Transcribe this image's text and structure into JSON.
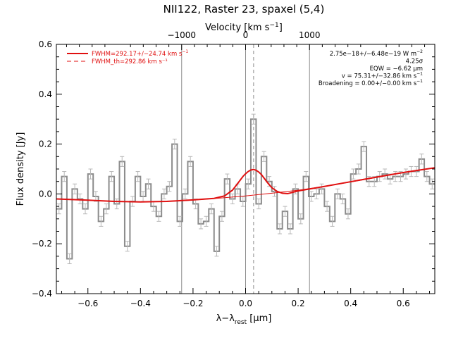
{
  "chart_data": {
    "type": "line",
    "title": "NII122, Raster 23, spaxel (5,4)",
    "xlabel": "λ−λ_rest [μm]",
    "xlabel_parts": {
      "main": "λ−λ",
      "sub": "rest",
      "unit": " [μm]"
    },
    "ylabel": "Flux density [Jy]",
    "top_axis_label": "Velocity [km s⁻¹]",
    "top_axis_label_parts": {
      "main": "Velocity [km s",
      "sup": "−1",
      "end": "]"
    },
    "xlim": [
      -0.72,
      0.72
    ],
    "ylim": [
      -0.4,
      0.6
    ],
    "xticks": [
      -0.6,
      -0.4,
      -0.2,
      0.0,
      0.2,
      0.4,
      0.6
    ],
    "xtick_labels": [
      "−0.6",
      "−0.4",
      "−0.2",
      "0.0",
      "0.2",
      "0.4",
      "0.6"
    ],
    "yticks": [
      -0.4,
      -0.2,
      0.0,
      0.2,
      0.4,
      0.6
    ],
    "ytick_labels": [
      "−0.4",
      "−0.2",
      "0.0",
      "0.2",
      "0.4",
      "0.6"
    ],
    "velocity_ticks": [
      {
        "x": -0.2433,
        "label": "−1000"
      },
      {
        "x": 0.0,
        "label": "0"
      },
      {
        "x": 0.2433,
        "label": "1000"
      }
    ],
    "vertical_lines": [
      {
        "x": -0.2433,
        "style": "solid"
      },
      {
        "x": 0.0,
        "style": "solid"
      },
      {
        "x": 0.2433,
        "style": "solid"
      },
      {
        "x": 0.0305,
        "style": "dashed"
      }
    ],
    "spectrum": {
      "x": [
        -0.71,
        -0.69,
        -0.67,
        -0.65,
        -0.63,
        -0.61,
        -0.59,
        -0.57,
        -0.55,
        -0.53,
        -0.51,
        -0.49,
        -0.47,
        -0.45,
        -0.43,
        -0.41,
        -0.39,
        -0.37,
        -0.35,
        -0.33,
        -0.31,
        -0.29,
        -0.27,
        -0.25,
        -0.23,
        -0.21,
        -0.19,
        -0.17,
        -0.15,
        -0.13,
        -0.11,
        -0.09,
        -0.07,
        -0.05,
        -0.03,
        -0.01,
        0.01,
        0.03,
        0.05,
        0.07,
        0.09,
        0.11,
        0.13,
        0.15,
        0.17,
        0.19,
        0.21,
        0.23,
        0.25,
        0.27,
        0.29,
        0.31,
        0.33,
        0.35,
        0.37,
        0.39,
        0.41,
        0.43,
        0.45,
        0.47,
        0.49,
        0.51,
        0.53,
        0.55,
        0.57,
        0.59,
        0.61,
        0.63,
        0.65,
        0.67,
        0.69,
        0.71
      ],
      "y": [
        -0.06,
        0.07,
        -0.26,
        0.02,
        -0.02,
        -0.06,
        0.08,
        -0.01,
        -0.11,
        -0.06,
        0.07,
        -0.04,
        0.13,
        -0.21,
        -0.03,
        0.07,
        -0.01,
        0.04,
        -0.05,
        -0.09,
        0.0,
        0.03,
        0.2,
        -0.11,
        0.0,
        0.13,
        -0.04,
        -0.12,
        -0.11,
        -0.06,
        -0.23,
        -0.09,
        0.06,
        -0.02,
        0.02,
        -0.03,
        0.04,
        0.3,
        -0.04,
        0.15,
        0.05,
        0.01,
        -0.14,
        -0.07,
        -0.14,
        0.02,
        -0.1,
        0.07,
        -0.01,
        0.0,
        0.02,
        -0.05,
        -0.11,
        0.0,
        -0.02,
        -0.08,
        0.08,
        0.1,
        0.19,
        0.05,
        0.05,
        0.07,
        0.08,
        0.06,
        0.07,
        0.07,
        0.08,
        0.09,
        0.09,
        0.14,
        0.07,
        0.04
      ],
      "errors": 0.02,
      "color": "#8c8c8c"
    },
    "fit": {
      "name": "FWHM=292.17+/−24.74 km s⁻¹",
      "legend_parts": {
        "main": "FWHM=292.17+/−24.74 km s",
        "sup": "−1"
      },
      "color": "#e01010",
      "x": [
        -0.72,
        -0.6,
        -0.5,
        -0.4,
        -0.3,
        -0.2,
        -0.12,
        -0.08,
        -0.05,
        -0.03,
        -0.01,
        0.0,
        0.01,
        0.02,
        0.03,
        0.04,
        0.05,
        0.06,
        0.07,
        0.08,
        0.09,
        0.1,
        0.12,
        0.14,
        0.16,
        0.2,
        0.3,
        0.4,
        0.5,
        0.6,
        0.72
      ],
      "y": [
        -0.02,
        -0.025,
        -0.03,
        -0.032,
        -0.03,
        -0.024,
        -0.018,
        -0.008,
        0.015,
        0.042,
        0.07,
        0.081,
        0.09,
        0.096,
        0.098,
        0.095,
        0.088,
        0.078,
        0.064,
        0.05,
        0.037,
        0.025,
        0.01,
        0.003,
        0.001,
        0.012,
        0.03,
        0.049,
        0.068,
        0.086,
        0.105
      ]
    },
    "baseline": {
      "color": "#e01010",
      "x": [
        -0.72,
        -0.6,
        -0.5,
        -0.4,
        -0.3,
        -0.2,
        -0.1,
        0.0,
        0.1,
        0.2,
        0.3,
        0.4,
        0.5,
        0.6,
        0.72
      ],
      "y": [
        -0.02,
        -0.025,
        -0.03,
        -0.032,
        -0.03,
        -0.025,
        -0.017,
        -0.008,
        0.003,
        0.015,
        0.03,
        0.048,
        0.066,
        0.085,
        0.105
      ]
    },
    "legend": [
      {
        "label": "FWHM=292.17+/−24.74 km s⁻¹",
        "style": "solid",
        "color": "#e01010"
      },
      {
        "label": "FWHM_th=292.86 km s⁻¹",
        "style": "dashed",
        "color": "#e01010"
      }
    ],
    "legend_placement": "top-left",
    "annotation_placement": "top-right",
    "annotations": [
      {
        "label": "2.75e−18+/−6.48e−19 W m⁻²",
        "parts": {
          "main": "2.75e−18+/−6.48e−19 W m",
          "sup": "−2"
        }
      },
      {
        "label": "4.25σ",
        "parts": {
          "main": "4.25σ",
          "sup": ""
        }
      },
      {
        "label": "EQW = −6.62 μm",
        "parts": {
          "main": "EQW = −6.62 μm",
          "sup": ""
        }
      },
      {
        "label": "v = 75.31+/−32.86 km s⁻¹",
        "parts": {
          "main": "v = 75.31+/−32.86 km s",
          "sup": "−1"
        }
      },
      {
        "label": "Broadening = 0.00+/−0.00 km s⁻¹",
        "parts": {
          "main": "Broadening = 0.00+/−0.00 km s",
          "sup": "−1"
        }
      }
    ],
    "grid": false
  }
}
